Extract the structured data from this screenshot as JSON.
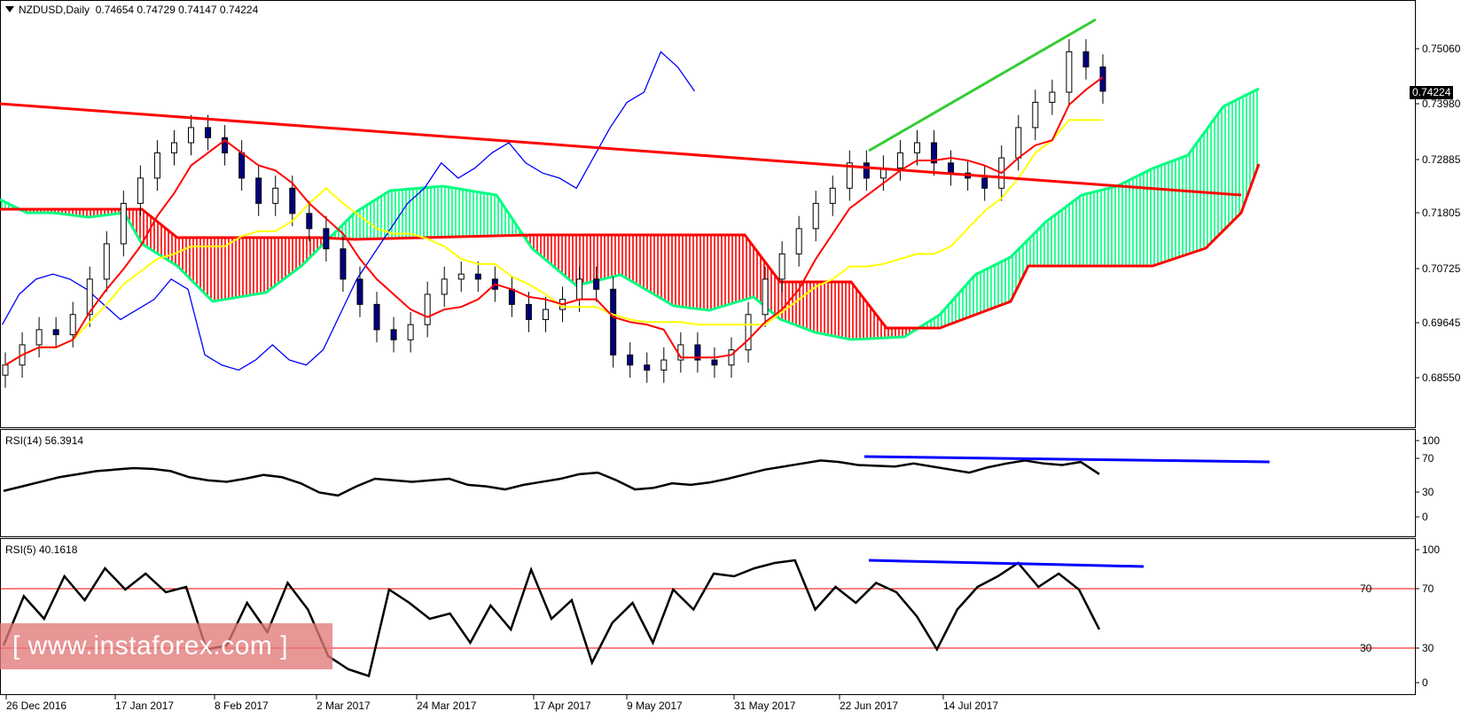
{
  "header": {
    "symbol": "NZDUSD,Daily",
    "open": "0.74654",
    "high": "0.74729",
    "low": "0.74147",
    "close": "0.74224"
  },
  "current_price_label": "0.74224",
  "watermark": "[ www.instaforex.com ]",
  "colors": {
    "bull_candle": "#ffffff",
    "bear_candle": "#000080",
    "tenkan": "#ff0000",
    "kijun": "#ffff00",
    "chikou": "#0000ff",
    "senkou_a_cloud": "#00ff7f",
    "senkou_b_cloud": "#ff0000",
    "trendline_red": "#ff0000",
    "trendline_green": "#33cc33",
    "divergence_blue": "#0000ff",
    "rsi_line": "#000000",
    "rsi_level_line": "#ff0000"
  },
  "panels": {
    "main": {
      "ticks": [
        "0.75060",
        "0.73980",
        "0.72885",
        "0.71805",
        "0.70725",
        "0.69645",
        "0.68550"
      ]
    },
    "rsi14": {
      "label": "RSI(14) 56.3914",
      "ticks": [
        "100",
        "70",
        "30",
        "0"
      ]
    },
    "rsi5": {
      "label": "RSI(5) 40.1618",
      "ticks": [
        "100",
        "70",
        "30",
        "0"
      ],
      "level_labels": [
        "70",
        "30"
      ]
    }
  },
  "x_axis": [
    "26 Dec 2016",
    "17 Jan 2017",
    "8 Feb 2017",
    "2 Mar 2017",
    "24 Mar 2017",
    "17 Apr 2017",
    "9 May 2017",
    "31 May 2017",
    "22 Jun 2017",
    "14 Jul 2017"
  ],
  "chart_data": [
    {
      "type": "candlestick",
      "title": "NZDUSD,Daily 0.74654 0.74729 0.74147 0.74224",
      "xlabel": "",
      "ylabel": "",
      "ylim": [
        0.68,
        0.757
      ],
      "x": [
        "26 Dec 2016",
        "17 Jan 2017",
        "8 Feb 2017",
        "2 Mar 2017",
        "24 Mar 2017",
        "17 Apr 2017",
        "9 May 2017",
        "31 May 2017",
        "22 Jun 2017",
        "14 Jul 2017"
      ],
      "y_ticks": [
        0.7506,
        0.7398,
        0.72885,
        0.71805,
        0.70725,
        0.69645,
        0.6855
      ],
      "indicators": [
        "Ichimoku (Tenkan red, Kijun yellow, Chikou blue, Kumo green/red)"
      ],
      "close_series_approx": [
        0.688,
        0.692,
        0.695,
        0.694,
        0.698,
        0.705,
        0.712,
        0.72,
        0.725,
        0.73,
        0.732,
        0.735,
        0.733,
        0.73,
        0.725,
        0.72,
        0.723,
        0.718,
        0.715,
        0.711,
        0.705,
        0.7,
        0.695,
        0.693,
        0.696,
        0.702,
        0.705,
        0.706,
        0.705,
        0.703,
        0.7,
        0.697,
        0.699,
        0.701,
        0.705,
        0.703,
        0.69,
        0.688,
        0.687,
        0.689,
        0.692,
        0.689,
        0.688,
        0.691,
        0.698,
        0.705,
        0.71,
        0.715,
        0.72,
        0.723,
        0.728,
        0.725,
        0.727,
        0.73,
        0.732,
        0.728,
        0.726,
        0.725,
        0.723,
        0.729,
        0.735,
        0.74,
        0.742,
        0.75,
        0.747,
        0.7422
      ],
      "current_price": 0.74224,
      "annotations": [
        {
          "type": "trendline",
          "color": "red",
          "from": [
            "26 Dec 2016",
            0.7435
          ],
          "to": [
            "late Aug 2017",
            0.724
          ]
        },
        {
          "type": "trendline",
          "color": "green",
          "from": [
            "6 Jun 2017",
            0.7315
          ],
          "to": [
            "20 Jul 2017",
            0.755
          ]
        }
      ]
    },
    {
      "type": "line",
      "title": "RSI(14) 56.3914",
      "ylim": [
        0,
        100
      ],
      "y_ticks": [
        100,
        70,
        30,
        0
      ],
      "series": [
        {
          "name": "RSI(14)",
          "values": [
            34,
            40,
            46,
            52,
            56,
            60,
            62,
            64,
            63,
            60,
            52,
            48,
            46,
            50,
            55,
            52,
            44,
            32,
            28,
            40,
            50,
            48,
            46,
            48,
            50,
            42,
            40,
            36,
            42,
            46,
            50,
            56,
            58,
            48,
            36,
            38,
            44,
            42,
            45,
            50,
            56,
            62,
            66,
            70,
            74,
            72,
            68,
            67,
            66,
            70,
            66,
            62,
            58,
            65,
            70,
            74,
            70,
            68,
            72,
            56
          ]
        }
      ],
      "annotations": [
        {
          "type": "divergence_line",
          "color": "blue",
          "from": [
            "6 Jun 2017",
            76
          ],
          "to": [
            "mid Aug 2017",
            72
          ]
        }
      ]
    },
    {
      "type": "line",
      "title": "RSI(5) 40.1618",
      "ylim": [
        0,
        100
      ],
      "y_ticks": [
        100,
        70,
        30,
        0
      ],
      "levels": [
        70,
        30
      ],
      "series": [
        {
          "name": "RSI(5)",
          "values": [
            28,
            65,
            48,
            80,
            62,
            86,
            70,
            82,
            68,
            72,
            25,
            28,
            60,
            38,
            75,
            55,
            20,
            10,
            5,
            70,
            60,
            48,
            52,
            30,
            58,
            40,
            85,
            48,
            62,
            15,
            45,
            60,
            30,
            70,
            55,
            82,
            80,
            86,
            90,
            92,
            55,
            72,
            60,
            75,
            68,
            50,
            25,
            55,
            72,
            80,
            90,
            72,
            82,
            70,
            40
          ]
        }
      ],
      "annotations": [
        {
          "type": "divergence_line",
          "color": "blue",
          "from": [
            "6 Jun 2017",
            92
          ],
          "to": [
            "mid Aug 2017",
            87
          ]
        }
      ]
    }
  ]
}
